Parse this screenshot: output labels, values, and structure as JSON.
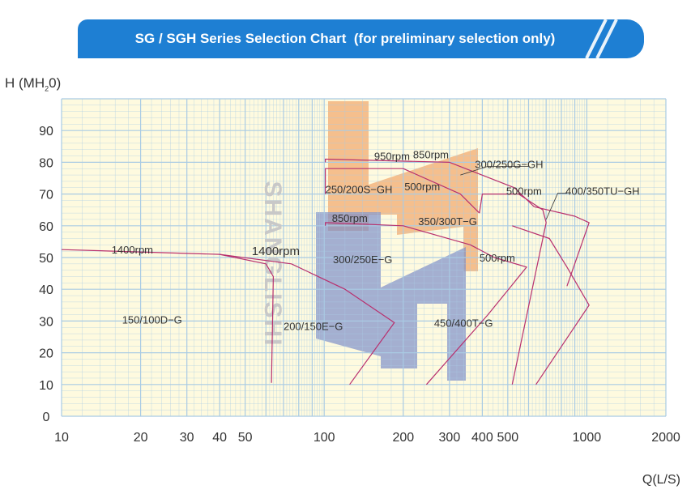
{
  "banner": {
    "title": "SG / SGH Series Selection Chart  (for preliminary selection only)",
    "color": "#1e7fd3"
  },
  "chart_data": {
    "type": "line",
    "title": "SG / SGH Series Selection Chart  (for preliminary selection only)",
    "xlabel": "Q(L/S)",
    "ylabel_prefix": "H (MH",
    "ylabel_sub": "2",
    "ylabel_suffix": "0)",
    "x_scale": "log",
    "xlim": [
      10,
      2000
    ],
    "ylim": [
      0,
      100
    ],
    "grid": true,
    "x_ticks": [
      {
        "v": 10,
        "label": "10"
      },
      {
        "v": 20,
        "label": "20"
      },
      {
        "v": 30,
        "label": "30"
      },
      {
        "v": 40,
        "label": "40"
      },
      {
        "v": 50,
        "label": "50"
      },
      {
        "v": 100,
        "label": "100"
      },
      {
        "v": 200,
        "label": "200"
      },
      {
        "v": 300,
        "label": "300"
      },
      {
        "v": 400,
        "label": "400"
      },
      {
        "v": 500,
        "label": "500"
      },
      {
        "v": 1000,
        "label": "1000"
      },
      {
        "v": 2000,
        "label": "2000"
      }
    ],
    "y_ticks": [
      {
        "v": 0,
        "label": "0"
      },
      {
        "v": 10,
        "label": "10"
      },
      {
        "v": 20,
        "label": "20"
      },
      {
        "v": 30,
        "label": "30"
      },
      {
        "v": 40,
        "label": "40"
      },
      {
        "v": 50,
        "label": "50"
      },
      {
        "v": 60,
        "label": "60"
      },
      {
        "v": 70,
        "label": "70"
      },
      {
        "v": 80,
        "label": "80"
      },
      {
        "v": 90,
        "label": "90"
      }
    ],
    "watermark": "SHANGLISHI",
    "colors": {
      "grid": "#a9cbe4",
      "plot_bg": "#fefadf",
      "curve": "#b8306e",
      "orange_logo": "#f2ab72",
      "blue_logo": "#7e8fc9",
      "text": "#333333",
      "watermark": "#c8c8c8"
    },
    "series": [
      {
        "model": "150/100D-G",
        "points": [
          [
            10,
            52.5
          ],
          [
            40,
            51
          ],
          [
            60,
            48
          ],
          [
            64,
            44
          ],
          [
            63,
            10.5
          ]
        ]
      },
      {
        "model": "200/150E-G",
        "points": [
          [
            40,
            51
          ],
          [
            75,
            48
          ],
          [
            120,
            40
          ],
          [
            185,
            29.5
          ],
          [
            125,
            10
          ]
        ]
      },
      {
        "model": "300/250E-G",
        "points": [
          [
            101,
            60
          ],
          [
            101,
            61
          ],
          [
            200,
            60
          ],
          [
            360,
            54
          ],
          [
            445,
            50
          ],
          [
            590,
            47
          ],
          [
            420,
            32
          ],
          [
            245,
            10
          ]
        ]
      },
      {
        "model": "250/200S-GH",
        "points": [
          [
            101,
            70
          ],
          [
            101,
            78
          ],
          [
            200,
            78
          ],
          [
            330,
            70
          ],
          [
            390,
            64
          ]
        ]
      },
      {
        "model": "300/250G-GH",
        "points": [
          [
            101,
            80
          ],
          [
            101,
            81
          ],
          [
            300,
            80
          ],
          [
            530,
            72
          ],
          [
            630,
            66
          ]
        ]
      },
      {
        "model": "350/300T-G",
        "points": [
          [
            390,
            64
          ],
          [
            400,
            70
          ],
          [
            550,
            70
          ],
          [
            680,
            65
          ],
          [
            700,
            61
          ],
          [
            520,
            10
          ]
        ]
      },
      {
        "model": "450/400T-G",
        "points": [
          [
            520,
            60
          ],
          [
            720,
            56
          ],
          [
            840,
            47
          ],
          [
            1020,
            35
          ],
          [
            640,
            10
          ]
        ]
      },
      {
        "model": "400/350TU-GH",
        "points": [
          [
            630,
            66
          ],
          [
            900,
            63
          ],
          [
            1020,
            61
          ],
          [
            840,
            41
          ]
        ]
      }
    ],
    "annotations": [
      {
        "text": "950rpm",
        "x": 155,
        "y": 82
      },
      {
        "text": "850rpm",
        "x": 218,
        "y": 82.5
      },
      {
        "text": "300/250G−GH",
        "x": 375,
        "y": 79.5
      },
      {
        "text": "250/200S−GH",
        "x": 101,
        "y": 71.5
      },
      {
        "text": "500rpm",
        "x": 202,
        "y": 72.5
      },
      {
        "text": "500rpm",
        "x": 493,
        "y": 71
      },
      {
        "text": "400/350TU−GH",
        "x": 830,
        "y": 71
      },
      {
        "text": "850rpm",
        "x": 107,
        "y": 62.5
      },
      {
        "text": "350/300T−G",
        "x": 228,
        "y": 61.5
      },
      {
        "text": "1400rpm",
        "x": 15.5,
        "y": 52.5
      },
      {
        "text": "1400rpm",
        "x": 53,
        "y": 52
      },
      {
        "text": "500rpm",
        "x": 390,
        "y": 50
      },
      {
        "text": "300/250E−G",
        "x": 108,
        "y": 49.5
      },
      {
        "text": "150/100D−G",
        "x": 17,
        "y": 30.5
      },
      {
        "text": "200/150E−G",
        "x": 70,
        "y": 28.5
      },
      {
        "text": "450/400T−G",
        "x": 262,
        "y": 29.5
      }
    ]
  }
}
